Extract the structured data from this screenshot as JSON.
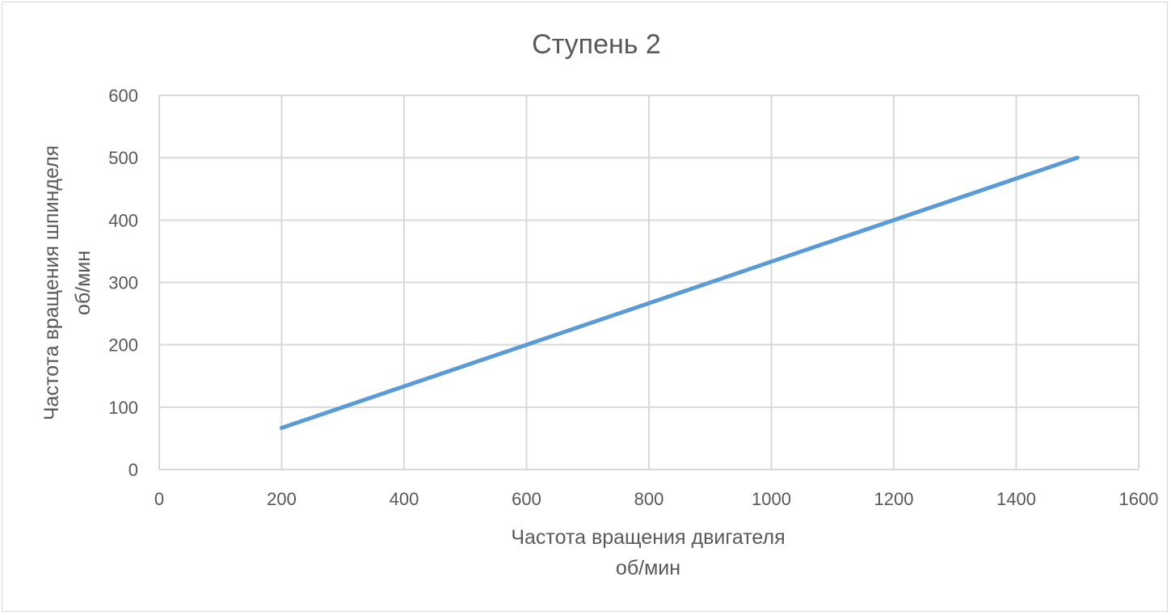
{
  "chart_data": {
    "type": "line",
    "title": "Ступень 2",
    "xlabel_lines": [
      "Частота вращения двигателя",
      "об/мин"
    ],
    "ylabel_lines": [
      "Частота вращения шпинделя",
      "об/мин"
    ],
    "xlim": [
      0,
      1600
    ],
    "ylim": [
      0,
      600
    ],
    "xticks": [
      "0",
      "200",
      "400",
      "600",
      "800",
      "1000",
      "1200",
      "1400",
      "1600"
    ],
    "yticks": [
      "0",
      "100",
      "200",
      "300",
      "400",
      "500",
      "600"
    ],
    "grid": true,
    "legend": "none",
    "series": [
      {
        "color": "#5b9bd5",
        "x": [
          200,
          1500
        ],
        "y": [
          66.7,
          500
        ]
      }
    ]
  }
}
